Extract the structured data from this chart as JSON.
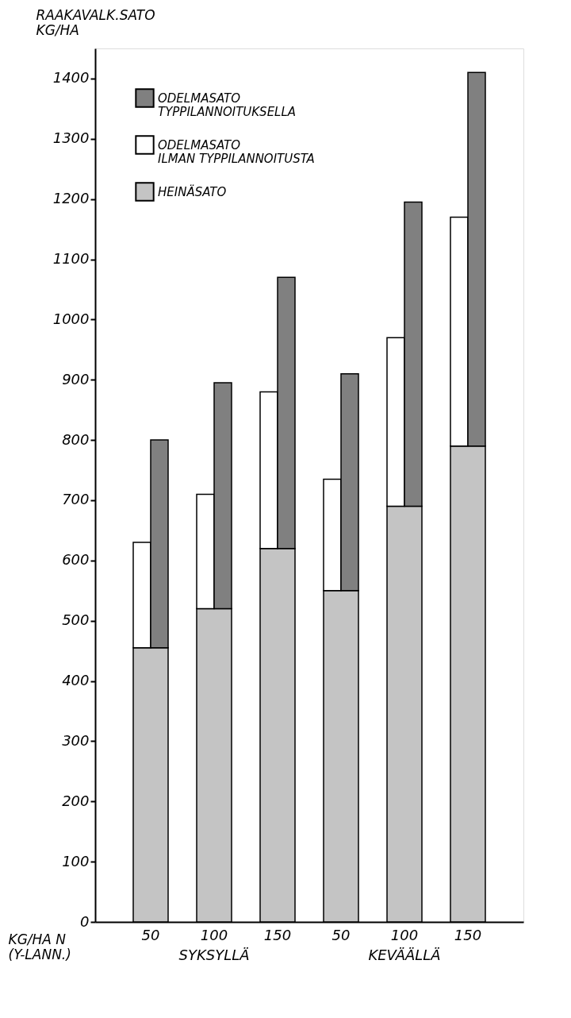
{
  "chart_data": {
    "type": "bar",
    "xlabel": "KG/HA N\n(Y-LANN.)",
    "ylabel": "RAAKAVALK.SATO\nKG/HA",
    "categories": [
      "50",
      "100",
      "150",
      "50",
      "100",
      "150"
    ],
    "series": [
      {
        "name": "HEINÄSATO",
        "color": "#c4c4c4",
        "values": [
          455,
          520,
          620,
          550,
          690,
          790
        ]
      },
      {
        "name": "ODELMASATO\nILMAN TYPPILANNOITUSTA",
        "color": "#ffffff",
        "base": [
          455,
          520,
          620,
          550,
          690,
          790
        ],
        "values": [
          175,
          190,
          260,
          185,
          280,
          380
        ]
      },
      {
        "name": "ODELMASATO\nTYPPILANNOITUKSELLA",
        "color": "#808080",
        "base": [
          455,
          520,
          620,
          550,
          690,
          790
        ],
        "values": [
          345,
          375,
          450,
          360,
          505,
          620
        ]
      }
    ],
    "annotations": [
      "SYKSYLLÄ",
      "KEVÄÄLLÄ"
    ],
    "ylim": [
      0,
      1450
    ],
    "yticks": [
      0,
      100,
      200,
      300,
      400,
      500,
      600,
      700,
      800,
      900,
      1000,
      1100,
      1200,
      1300,
      1400
    ],
    "grid": false,
    "legend": "top left"
  }
}
